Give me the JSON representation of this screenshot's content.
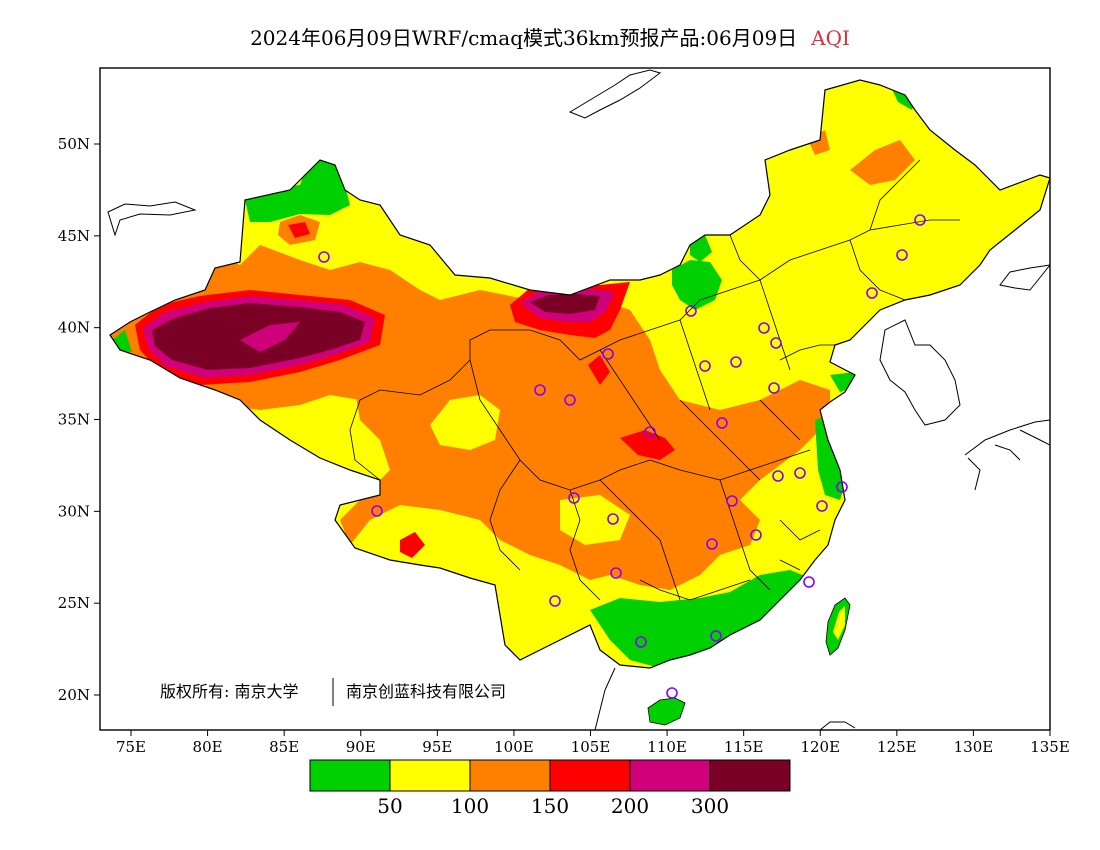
{
  "title": {
    "main": "2024年06月09日WRF/cmaq模式36km预报产品:06月09日",
    "product": "AQI"
  },
  "map": {
    "lon_ticks": [
      "75E",
      "80E",
      "85E",
      "90E",
      "95E",
      "100E",
      "105E",
      "110E",
      "115E",
      "120E",
      "125E",
      "130E",
      "135E"
    ],
    "lat_ticks": [
      "50N",
      "45N",
      "40N",
      "35N",
      "30N",
      "25N",
      "20N"
    ],
    "copyright": "版权所有: 南京大学",
    "company": "南京创蓝科技有限公司"
  },
  "legend": {
    "colors": [
      "#00d000",
      "#ffff00",
      "#ff8000",
      "#ff0000",
      "#d0007a",
      "#7a0025"
    ],
    "labels": [
      "50",
      "100",
      "150",
      "200",
      "300"
    ]
  },
  "palette": {
    "good": "#00d000",
    "moderate": "#ffff00",
    "sensitive": "#ff8000",
    "unhealthy": "#ff0000",
    "very_unhealthy": "#d0007a",
    "hazardous": "#7a0025",
    "station_marker": "#8a00ff"
  }
}
